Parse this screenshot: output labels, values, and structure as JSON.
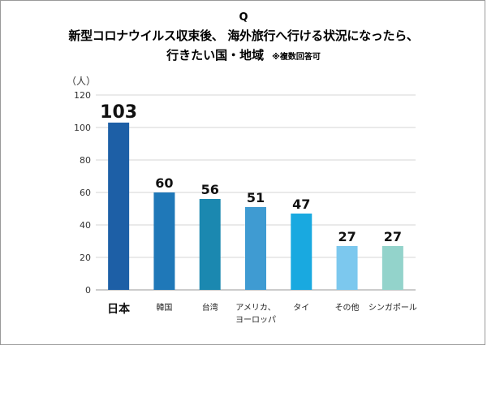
{
  "chart_data": {
    "type": "bar",
    "q_label": "Q",
    "title_line1": "新型コロナウイルス収束後、 海外旅行へ行ける状況になったら、",
    "title_line2": "行きたい国・地域",
    "note": "※複数回答可",
    "ylabel": "（人）",
    "ylim": [
      0,
      120
    ],
    "yticks": [
      0,
      20,
      40,
      60,
      80,
      100,
      120
    ],
    "grid": true,
    "categories": [
      [
        "日本"
      ],
      [
        "韓国"
      ],
      [
        "台湾"
      ],
      [
        "アメリカ、",
        "ヨーロッパ"
      ],
      [
        "タイ"
      ],
      [
        "その他"
      ],
      [
        "シンガポール"
      ]
    ],
    "values": [
      103,
      60,
      56,
      51,
      47,
      27,
      27
    ],
    "colors": [
      "#1d5fa6",
      "#1f78b8",
      "#1b88b0",
      "#3f9bd2",
      "#19a9e0",
      "#7cc8ee",
      "#93d3cb"
    ]
  }
}
